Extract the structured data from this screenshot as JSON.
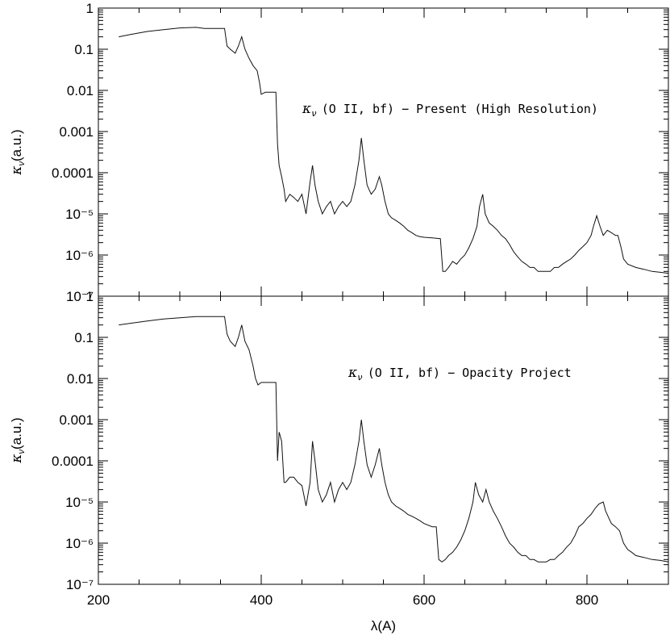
{
  "chart_data": [
    {
      "type": "line",
      "annotation": {
        "symbol": "κ",
        "subscript": "ν",
        "text": "(O II, bf) − Present (High Resolution)"
      },
      "ylabel": {
        "symbol": "κ",
        "subscript": "ν",
        "text": "(a.u.)"
      },
      "yscale": "log",
      "ylim": [
        1e-07,
        1
      ],
      "xlim": [
        200,
        900
      ],
      "y_tick_labels": [
        "1",
        "0.1",
        "0.01",
        "0.001",
        "0.0001",
        "10⁻⁵",
        "10⁻⁶",
        "10⁻⁷"
      ],
      "series": [
        {
          "x": [
            225,
            240,
            260,
            280,
            300,
            320,
            330,
            345,
            355,
            358,
            362,
            368,
            372,
            376,
            380,
            385,
            390,
            395,
            398,
            400,
            405,
            410,
            415,
            418,
            420,
            422,
            425,
            428,
            430,
            435,
            440,
            445,
            450,
            455,
            460,
            463,
            466,
            470,
            475,
            480,
            485,
            490,
            495,
            500,
            505,
            510,
            515,
            520,
            523,
            526,
            530,
            535,
            540,
            545,
            548,
            552,
            556,
            560,
            565,
            570,
            575,
            580,
            585,
            590,
            595,
            600,
            610,
            620,
            623,
            626,
            630,
            635,
            640,
            645,
            650,
            655,
            660,
            665,
            668,
            672,
            675,
            680,
            685,
            690,
            695,
            700,
            705,
            710,
            715,
            720,
            725,
            730,
            735,
            740,
            745,
            750,
            755,
            760,
            765,
            770,
            775,
            780,
            785,
            790,
            795,
            800,
            805,
            808,
            812,
            816,
            820,
            825,
            830,
            835,
            838,
            842,
            845,
            850,
            860,
            870,
            880,
            890,
            900
          ],
          "y": [
            0.2,
            0.23,
            0.27,
            0.3,
            0.33,
            0.34,
            0.32,
            0.32,
            0.32,
            0.12,
            0.1,
            0.08,
            0.12,
            0.2,
            0.1,
            0.06,
            0.04,
            0.03,
            0.015,
            0.008,
            0.009,
            0.009,
            0.009,
            0.009,
            0.0005,
            0.00015,
            8e-05,
            4e-05,
            2e-05,
            3e-05,
            2.5e-05,
            2e-05,
            3e-05,
            1e-05,
            6e-05,
            0.00015,
            5e-05,
            2e-05,
            1e-05,
            1.5e-05,
            2e-05,
            1e-05,
            1.5e-05,
            2e-05,
            1.5e-05,
            2e-05,
            5e-05,
            0.0002,
            0.0007,
            0.0002,
            5e-05,
            3e-05,
            4e-05,
            8e-05,
            5e-05,
            2e-05,
            1e-05,
            8e-06,
            7e-06,
            6e-06,
            5e-06,
            4e-06,
            3.5e-06,
            3e-06,
            2.8e-06,
            2.7e-06,
            2.6e-06,
            2.5e-06,
            4e-07,
            4e-07,
            5e-07,
            7e-07,
            6e-07,
            8e-07,
            1e-06,
            1.5e-06,
            2.5e-06,
            5e-06,
            1.5e-05,
            3e-05,
            1e-05,
            6e-06,
            5e-06,
            4e-06,
            3e-06,
            2.5e-06,
            1.8e-06,
            1.2e-06,
            9e-07,
            7e-07,
            6e-07,
            5e-07,
            5e-07,
            4e-07,
            4e-07,
            4e-07,
            4e-07,
            5e-07,
            5e-07,
            6e-07,
            7e-07,
            8e-07,
            1e-06,
            1.3e-06,
            1.6e-06,
            2e-06,
            3e-06,
            5e-06,
            9e-06,
            5e-06,
            3e-06,
            4e-06,
            3.5e-06,
            3e-06,
            3e-06,
            1.5e-06,
            8e-07,
            6e-07,
            5e-07,
            4.5e-07,
            4e-07,
            3.8e-07,
            3.6e-07
          ]
        }
      ]
    },
    {
      "type": "line",
      "annotation": {
        "symbol": "κ",
        "subscript": "ν",
        "text": "(O II, bf) − Opacity Project"
      },
      "ylabel": {
        "symbol": "κ",
        "subscript": "ν",
        "text": "(a.u.)"
      },
      "xlabel": "λ(A)",
      "yscale": "log",
      "ylim": [
        1e-07,
        1
      ],
      "xlim": [
        200,
        900
      ],
      "x_tick_labels": [
        "200",
        "400",
        "600",
        "800"
      ],
      "y_tick_labels": [
        "1",
        "0.1",
        "0.01",
        "0.001",
        "0.0001",
        "10⁻⁵",
        "10⁻⁶",
        "10⁻⁷"
      ],
      "series": [
        {
          "x": [
            225,
            240,
            260,
            280,
            300,
            320,
            330,
            345,
            355,
            358,
            362,
            368,
            372,
            376,
            380,
            385,
            390,
            393,
            396,
            400,
            405,
            410,
            415,
            418,
            420,
            422,
            425,
            428,
            430,
            435,
            440,
            445,
            450,
            455,
            460,
            463,
            466,
            470,
            475,
            480,
            485,
            490,
            495,
            500,
            505,
            510,
            515,
            520,
            523,
            526,
            530,
            535,
            540,
            545,
            548,
            552,
            556,
            560,
            565,
            570,
            575,
            580,
            585,
            590,
            595,
            600,
            610,
            615,
            618,
            622,
            626,
            630,
            635,
            640,
            645,
            650,
            655,
            660,
            663,
            667,
            672,
            676,
            680,
            685,
            690,
            695,
            700,
            705,
            710,
            715,
            720,
            725,
            730,
            735,
            740,
            745,
            750,
            755,
            760,
            765,
            770,
            775,
            780,
            785,
            790,
            795,
            800,
            805,
            810,
            815,
            820,
            823,
            827,
            830,
            835,
            840,
            845,
            850,
            855,
            860,
            870,
            880,
            890,
            900
          ],
          "y": [
            0.2,
            0.22,
            0.25,
            0.28,
            0.3,
            0.32,
            0.32,
            0.32,
            0.32,
            0.12,
            0.08,
            0.06,
            0.1,
            0.2,
            0.08,
            0.05,
            0.02,
            0.01,
            0.007,
            0.008,
            0.008,
            0.008,
            0.008,
            0.008,
            0.0001,
            0.0005,
            0.0003,
            3e-05,
            3e-05,
            4e-05,
            4e-05,
            3e-05,
            2.5e-05,
            8e-06,
            3e-05,
            0.0003,
            0.0001,
            2e-05,
            1e-05,
            1.5e-05,
            3e-05,
            1e-05,
            2e-05,
            3e-05,
            2e-05,
            3e-05,
            8e-05,
            0.0003,
            0.001,
            0.0003,
            8e-05,
            4e-05,
            8e-05,
            0.0002,
            8e-05,
            3e-05,
            1.5e-05,
            1e-05,
            8e-06,
            7e-06,
            6e-06,
            5e-06,
            4.5e-06,
            4e-06,
            3.5e-06,
            3e-06,
            2.5e-06,
            2.5e-06,
            4e-07,
            3.5e-07,
            4e-07,
            5e-07,
            6e-07,
            8e-07,
            1.2e-06,
            2e-06,
            4e-06,
            1e-05,
            3e-05,
            1.5e-05,
            1e-05,
            2e-05,
            1e-05,
            6e-06,
            4e-06,
            2.5e-06,
            1.5e-06,
            1e-06,
            8e-07,
            6e-07,
            5e-07,
            5e-07,
            4e-07,
            4e-07,
            3.5e-07,
            3.5e-07,
            3.5e-07,
            4e-07,
            4e-07,
            5e-07,
            6e-07,
            8e-07,
            1e-06,
            1.5e-06,
            2.5e-06,
            3e-06,
            4e-06,
            5e-06,
            7e-06,
            9e-06,
            1e-05,
            6e-06,
            4e-06,
            3e-06,
            2.5e-06,
            2e-06,
            1e-06,
            7e-07,
            6e-07,
            5e-07,
            4.5e-07,
            4e-07,
            3.8e-07,
            3.5e-07
          ]
        }
      ]
    }
  ]
}
